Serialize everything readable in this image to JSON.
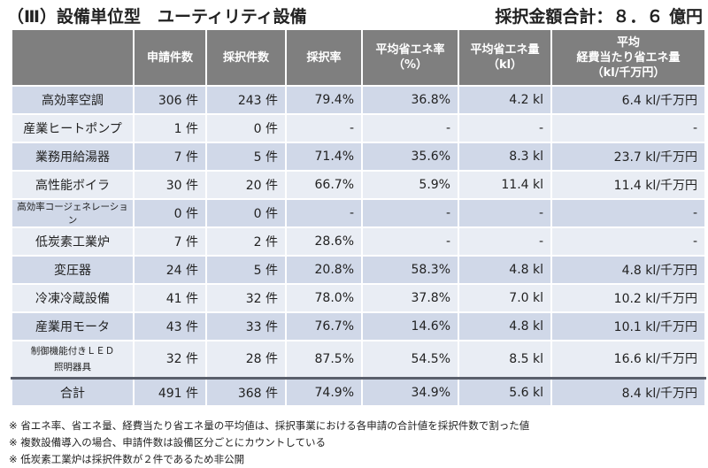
{
  "title": "（Ⅲ）設備単位型　ユーティリティ設備",
  "total_amount": "採択金額合計：８．６ 億円",
  "columns": [
    "",
    "申請件数",
    "採択件数",
    "採択率",
    "平均省エネ率\n（%）",
    "平均省エネ量\n（kl）",
    "平均\n経費当たり省エネ量\n（kl/千万円）"
  ],
  "rows": [
    [
      "高効率空調",
      "306 件",
      "243 件",
      "79.4%",
      "36.8%",
      "4.2 kl",
      "6.4 kl/千万円"
    ],
    [
      "産業ヒートポンプ",
      "1 件",
      "0 件",
      "-",
      "-",
      "-",
      "-"
    ],
    [
      "業務用給湯器",
      "7 件",
      "5 件",
      "71.4%",
      "35.6%",
      "8.3 kl",
      "23.7 kl/千万円"
    ],
    [
      "高性能ボイラ",
      "30 件",
      "20 件",
      "66.7%",
      "5.9%",
      "11.4 kl",
      "11.4 kl/千万円"
    ],
    [
      "高効率コージェネレーション",
      "0 件",
      "0 件",
      "-",
      "-",
      "-",
      "-"
    ],
    [
      "低炭素工業炉",
      "7 件",
      "2 件",
      "28.6%",
      "-",
      "-",
      "-"
    ],
    [
      "変圧器",
      "24 件",
      "5 件",
      "20.8%",
      "58.3%",
      "4.8 kl",
      "4.8 kl/千万円"
    ],
    [
      "冷凍冷蔵設備",
      "41 件",
      "32 件",
      "78.0%",
      "37.8%",
      "7.0 kl",
      "10.2 kl/千万円"
    ],
    [
      "産業用モータ",
      "43 件",
      "33 件",
      "76.7%",
      "14.6%",
      "4.8 kl",
      "10.1 kl/千万円"
    ],
    [
      "制御機能付きＬＥＤ\n照明器具",
      "32 件",
      "28 件",
      "87.5%",
      "54.5%",
      "8.5 kl",
      "16.6 kl/千万円"
    ]
  ],
  "sum_row": [
    "合計",
    "491 件",
    "368 件",
    "74.9%",
    "34.9%",
    "5.6 kl",
    "8.4 kl/千万円"
  ],
  "notes": [
    "※ 省エネ率、省エネ量、経費当たり省エネ量の平均値は、採択事業における各申請の合計値を採択件数で割った値",
    "※ 複数設備導入の場合、申請件数は設備区分ごとにカウントしている",
    "※ 低炭素工業炉は採択件数が２件であるため非公開"
  ]
}
